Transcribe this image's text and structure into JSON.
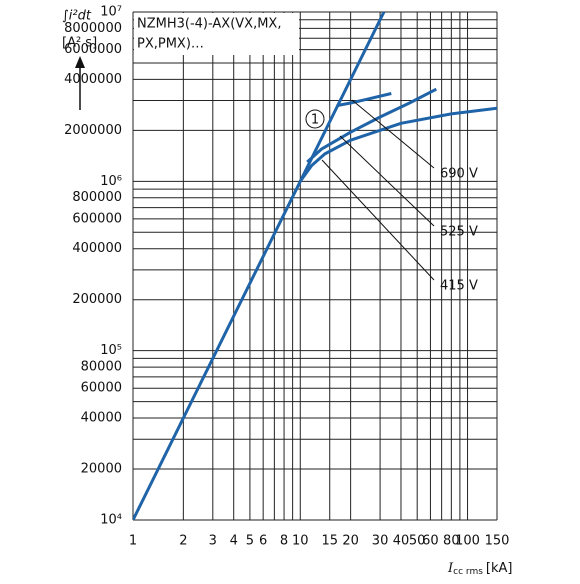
{
  "chart_data": {
    "type": "line",
    "title_lines": [
      "NZMH3(-4)-AX(VX,MX,",
      "PX,PMX)…"
    ],
    "y_label_lines": [
      "∫i²dt",
      "[A² s]"
    ],
    "x_label": {
      "symbol": "I",
      "subscript": "cc rms",
      "unit": "[kA]"
    },
    "annotation": "1",
    "log_x": true,
    "log_y": true,
    "grid": true,
    "color": "#1f64a8",
    "xlim": [
      1,
      150
    ],
    "ylim": [
      10000,
      10000000
    ],
    "xticks": [
      1,
      2,
      3,
      4,
      5,
      6,
      8,
      10,
      15,
      20,
      30,
      40,
      50,
      60,
      80,
      100,
      150
    ],
    "x_minor_grid": [
      7,
      9,
      70,
      90
    ],
    "yticks": [
      {
        "value": 10000,
        "label": "10⁴"
      },
      20000,
      40000,
      60000,
      80000,
      {
        "value": 100000,
        "label": "10⁵"
      },
      200000,
      400000,
      600000,
      800000,
      {
        "value": 1000000,
        "label": "10⁶"
      },
      2000000,
      4000000,
      6000000,
      8000000,
      {
        "value": 10000000,
        "label": "10⁷"
      }
    ],
    "y_minor_grid": [
      30000,
      50000,
      70000,
      90000,
      300000,
      500000,
      700000,
      900000,
      3000000,
      5000000,
      7000000,
      9000000
    ],
    "series": [
      {
        "x": [
          1,
          10,
          31.6
        ],
        "values": [
          10000,
          1000000,
          10000000
        ]
      },
      {
        "name": "690 V",
        "x": [
          16.5,
          20,
          25,
          35
        ],
        "values": [
          2800000,
          2900000,
          3050000,
          3300000
        ]
      },
      {
        "name": "525 V",
        "x": [
          11,
          13.4,
          20,
          30,
          45,
          65
        ],
        "values": [
          1300000,
          1550000,
          1950000,
          2400000,
          2900000,
          3500000
        ]
      },
      {
        "name": "415 V",
        "x": [
          10,
          11.7,
          14,
          20,
          40,
          80,
          150
        ],
        "values": [
          1000000,
          1240000,
          1450000,
          1750000,
          2200000,
          2500000,
          2700000
        ]
      }
    ]
  }
}
